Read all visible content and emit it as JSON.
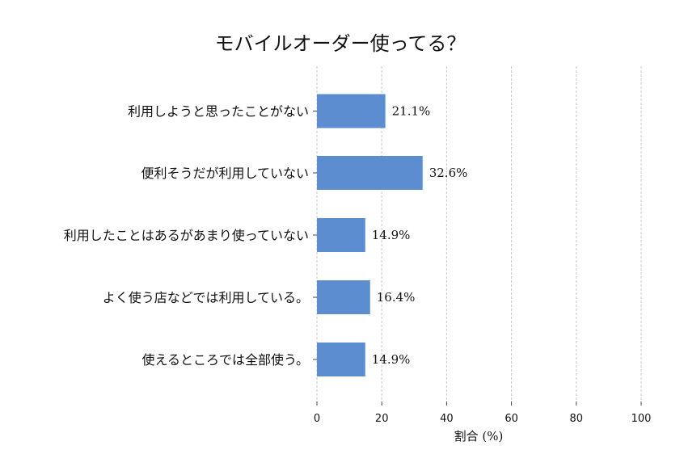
{
  "chart_data": {
    "type": "bar",
    "orientation": "horizontal",
    "title": "モバイルオーダー使ってる？",
    "xlabel": "割合 (%)",
    "ylabel": "",
    "xlim": [
      0,
      100
    ],
    "xticks": [
      0,
      20,
      40,
      60,
      80,
      100
    ],
    "grid": true,
    "bar_color": "#5b8dd0",
    "categories": [
      "利用しようと思ったことがない",
      "便利そうだが利用していない",
      "利用したことはあるがあまり使っていない",
      "よく使う店などでは利用している。",
      "使えるところでは全部使う。"
    ],
    "values": [
      21.1,
      32.6,
      14.9,
      16.4,
      14.9
    ],
    "value_labels": [
      "21.1%",
      "32.6%",
      "14.9%",
      "16.4%",
      "14.9%"
    ]
  }
}
